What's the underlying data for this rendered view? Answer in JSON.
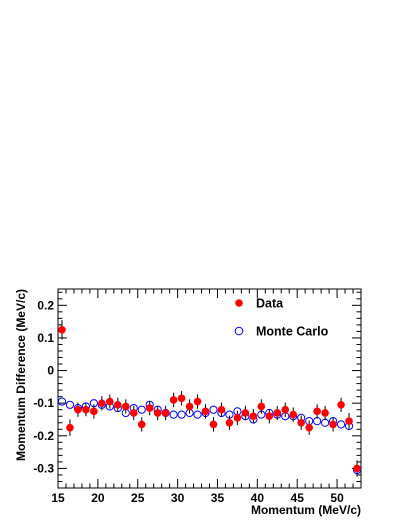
{
  "chart_data": {
    "type": "scatter",
    "xlabel": "Momentum (MeV/c)",
    "ylabel": "Momentum Difference (MeV/c)",
    "xlim": [
      15,
      53
    ],
    "ylim": [
      -0.36,
      0.25
    ],
    "x_ticks": [
      15,
      20,
      25,
      30,
      35,
      40,
      45,
      50
    ],
    "x_tick_labels": [
      "15",
      "20",
      "25",
      "30",
      "35",
      "40",
      "45",
      "50"
    ],
    "y_ticks": [
      0.2,
      0.1,
      0,
      -0.1,
      -0.2,
      -0.3
    ],
    "y_tick_labels": [
      "0.2",
      "0.1",
      "0",
      "-0.1",
      "-0.2",
      "-0.3"
    ],
    "grid": false,
    "legend_position": "top-right",
    "series": [
      {
        "name": "Data",
        "marker": "filled-circle",
        "color": "#ff0000",
        "x": [
          15.5,
          16.5,
          17.5,
          18.5,
          19.5,
          20.5,
          21.5,
          22.5,
          23.5,
          24.5,
          25.5,
          26.5,
          27.5,
          28.5,
          29.5,
          30.5,
          31.5,
          32.5,
          33.5,
          34.5,
          35.5,
          36.5,
          37.5,
          38.5,
          39.5,
          40.5,
          41.5,
          42.5,
          43.5,
          44.5,
          45.5,
          46.5,
          47.5,
          48.5,
          49.5,
          50.5,
          51.5,
          52.5
        ],
        "y": [
          0.125,
          -0.175,
          -0.12,
          -0.12,
          -0.125,
          -0.1,
          -0.095,
          -0.105,
          -0.11,
          -0.13,
          -0.165,
          -0.115,
          -0.13,
          -0.13,
          -0.09,
          -0.085,
          -0.11,
          -0.095,
          -0.125,
          -0.165,
          -0.12,
          -0.16,
          -0.145,
          -0.13,
          -0.14,
          -0.11,
          -0.14,
          -0.13,
          -0.12,
          -0.135,
          -0.16,
          -0.175,
          -0.125,
          -0.13,
          -0.165,
          -0.105,
          -0.155,
          -0.3
        ],
        "err": [
          0.03,
          0.025,
          0.022,
          0.02,
          0.022,
          0.022,
          0.022,
          0.022,
          0.022,
          0.022,
          0.022,
          0.022,
          0.022,
          0.022,
          0.022,
          0.022,
          0.022,
          0.022,
          0.022,
          0.022,
          0.022,
          0.022,
          0.022,
          0.022,
          0.022,
          0.022,
          0.022,
          0.022,
          0.022,
          0.022,
          0.022,
          0.022,
          0.022,
          0.022,
          0.022,
          0.022,
          0.025,
          0.025
        ]
      },
      {
        "name": "Monte Carlo",
        "marker": "open-circle",
        "color": "#0000ff",
        "x": [
          15.5,
          16.5,
          17.5,
          18.5,
          19.5,
          20.5,
          21.5,
          22.5,
          23.5,
          24.5,
          25.5,
          26.5,
          27.5,
          28.5,
          29.5,
          30.5,
          31.5,
          32.5,
          33.5,
          34.5,
          35.5,
          36.5,
          37.5,
          38.5,
          39.5,
          40.5,
          41.5,
          42.5,
          43.5,
          44.5,
          45.5,
          46.5,
          47.5,
          48.5,
          49.5,
          50.5,
          51.5,
          52.5
        ],
        "y": [
          -0.095,
          -0.105,
          -0.115,
          -0.11,
          -0.1,
          -0.105,
          -0.11,
          -0.115,
          -0.13,
          -0.115,
          -0.12,
          -0.105,
          -0.12,
          -0.13,
          -0.135,
          -0.135,
          -0.13,
          -0.135,
          -0.13,
          -0.12,
          -0.13,
          -0.135,
          -0.125,
          -0.14,
          -0.15,
          -0.135,
          -0.13,
          -0.135,
          -0.14,
          -0.14,
          -0.145,
          -0.155,
          -0.155,
          -0.16,
          -0.155,
          -0.165,
          -0.17,
          -0.305
        ]
      }
    ]
  }
}
